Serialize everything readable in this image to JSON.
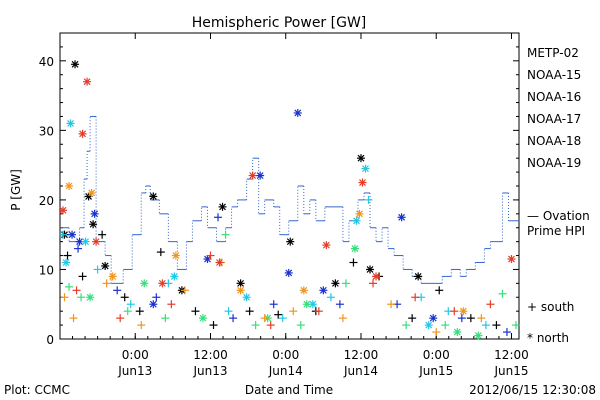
{
  "chart_data": {
    "type": "scatter",
    "title": "Hemispheric Power [GW]",
    "ylabel": "P [GW]",
    "xlabel": "Date and Time",
    "ylim": [
      0,
      44
    ],
    "yticks": [
      0,
      10,
      20,
      30,
      40
    ],
    "xlim": [
      -0.5,
      2.55
    ],
    "x_units": "days since 2012-06-13 00:00 UT",
    "xticks": [
      {
        "x": 0.0,
        "line1": "0:00",
        "line2": "Jun13"
      },
      {
        "x": 0.5,
        "line1": "12:00",
        "line2": "Jun13"
      },
      {
        "x": 1.0,
        "line1": "0:00",
        "line2": "Jun14"
      },
      {
        "x": 1.5,
        "line1": "12:00",
        "line2": "Jun14"
      },
      {
        "x": 2.0,
        "line1": "0:00",
        "line2": "Jun15"
      },
      {
        "x": 2.5,
        "line1": "12:00",
        "line2": "Jun15"
      }
    ],
    "legend_placement": "right",
    "series": [
      {
        "name": "METP-02",
        "color": "#000000"
      },
      {
        "name": "NOAA-15",
        "color": "#1a33cc"
      },
      {
        "name": "NOAA-16",
        "color": "#22c8e6"
      },
      {
        "name": "NOAA-17",
        "color": "#33e07a"
      },
      {
        "name": "NOAA-18",
        "color": "#f0961e"
      },
      {
        "name": "NOAA-19",
        "color": "#e63c28"
      }
    ],
    "marker_legend": [
      {
        "symbol": "+",
        "label": "south"
      },
      {
        "symbol": "*",
        "label": "north"
      }
    ],
    "ovation": {
      "label_line1": "— Ovation",
      "label_line2": "Prime HPI",
      "color": "#3366cc",
      "steps": [
        [
          -0.5,
          16
        ],
        [
          -0.44,
          14
        ],
        [
          -0.37,
          16
        ],
        [
          -0.34,
          23
        ],
        [
          -0.32,
          27
        ],
        [
          -0.3,
          32
        ],
        [
          -0.26,
          14
        ],
        [
          -0.2,
          12
        ],
        [
          -0.16,
          8
        ],
        [
          -0.08,
          10
        ],
        [
          -0.02,
          15
        ],
        [
          0.04,
          21
        ],
        [
          0.07,
          22
        ],
        [
          0.1,
          20
        ],
        [
          0.16,
          18
        ],
        [
          0.22,
          14
        ],
        [
          0.28,
          10
        ],
        [
          0.34,
          14
        ],
        [
          0.38,
          17
        ],
        [
          0.44,
          19
        ],
        [
          0.48,
          16
        ],
        [
          0.54,
          14
        ],
        [
          0.6,
          16
        ],
        [
          0.64,
          19
        ],
        [
          0.68,
          20
        ],
        [
          0.74,
          23
        ],
        [
          0.78,
          26
        ],
        [
          0.82,
          18
        ],
        [
          0.86,
          20
        ],
        [
          0.92,
          19
        ],
        [
          0.96,
          15
        ],
        [
          1.02,
          17
        ],
        [
          1.08,
          22
        ],
        [
          1.12,
          18
        ],
        [
          1.16,
          20
        ],
        [
          1.2,
          17
        ],
        [
          1.26,
          19
        ],
        [
          1.32,
          19
        ],
        [
          1.38,
          14
        ],
        [
          1.42,
          17
        ],
        [
          1.48,
          20
        ],
        [
          1.52,
          21
        ],
        [
          1.56,
          16
        ],
        [
          1.6,
          14
        ],
        [
          1.64,
          16
        ],
        [
          1.68,
          13
        ],
        [
          1.72,
          12
        ],
        [
          1.78,
          10
        ],
        [
          1.84,
          9
        ],
        [
          1.9,
          8
        ],
        [
          1.96,
          8
        ],
        [
          2.04,
          9
        ],
        [
          2.1,
          10
        ],
        [
          2.16,
          9
        ],
        [
          2.2,
          10
        ],
        [
          2.26,
          11
        ],
        [
          2.32,
          13
        ],
        [
          2.36,
          14
        ],
        [
          2.4,
          14
        ],
        [
          2.44,
          21
        ],
        [
          2.48,
          17
        ],
        [
          2.55,
          17
        ]
      ]
    },
    "points": [
      {
        "s": 0,
        "m": "*",
        "x": -0.47,
        "y": 15
      },
      {
        "s": 0,
        "m": "*",
        "x": -0.4,
        "y": 39.5
      },
      {
        "s": 0,
        "m": "*",
        "x": -0.31,
        "y": 20.5
      },
      {
        "s": 0,
        "m": "*",
        "x": -0.28,
        "y": 16.5
      },
      {
        "s": 0,
        "m": "*",
        "x": -0.2,
        "y": 10.5
      },
      {
        "s": 0,
        "m": "*",
        "x": 0.12,
        "y": 20.5
      },
      {
        "s": 0,
        "m": "*",
        "x": 0.58,
        "y": 19
      },
      {
        "s": 0,
        "m": "*",
        "x": 1.03,
        "y": 14
      },
      {
        "s": 0,
        "m": "*",
        "x": 1.5,
        "y": 26
      },
      {
        "s": 0,
        "m": "*",
        "x": 1.56,
        "y": 10
      },
      {
        "s": 0,
        "m": "*",
        "x": 0.31,
        "y": 7
      },
      {
        "s": 0,
        "m": "*",
        "x": 0.7,
        "y": 8
      },
      {
        "s": 0,
        "m": "*",
        "x": 1.33,
        "y": 8
      },
      {
        "s": 0,
        "m": "*",
        "x": 1.88,
        "y": 9
      },
      {
        "s": 0,
        "m": "+",
        "x": -0.45,
        "y": 12
      },
      {
        "s": 0,
        "m": "+",
        "x": -0.35,
        "y": 9
      },
      {
        "s": 0,
        "m": "+",
        "x": -0.22,
        "y": 15
      },
      {
        "s": 0,
        "m": "+",
        "x": -0.07,
        "y": 6
      },
      {
        "s": 0,
        "m": "+",
        "x": 0.03,
        "y": 4
      },
      {
        "s": 0,
        "m": "+",
        "x": 0.17,
        "y": 12.5
      },
      {
        "s": 0,
        "m": "+",
        "x": 0.4,
        "y": 4
      },
      {
        "s": 0,
        "m": "+",
        "x": 0.52,
        "y": 2
      },
      {
        "s": 0,
        "m": "+",
        "x": 0.76,
        "y": 4
      },
      {
        "s": 0,
        "m": "+",
        "x": 0.95,
        "y": 3.5
      },
      {
        "s": 0,
        "m": "+",
        "x": 1.2,
        "y": 4
      },
      {
        "s": 0,
        "m": "+",
        "x": 1.45,
        "y": 11
      },
      {
        "s": 0,
        "m": "+",
        "x": 1.62,
        "y": 9
      },
      {
        "s": 0,
        "m": "+",
        "x": 1.84,
        "y": 3
      },
      {
        "s": 0,
        "m": "+",
        "x": 2.02,
        "y": 7
      },
      {
        "s": 0,
        "m": "+",
        "x": 2.23,
        "y": 3
      },
      {
        "s": 0,
        "m": "+",
        "x": 2.4,
        "y": 2
      },
      {
        "s": 1,
        "m": "*",
        "x": -0.42,
        "y": 15
      },
      {
        "s": 1,
        "m": "*",
        "x": -0.37,
        "y": 14
      },
      {
        "s": 1,
        "m": "*",
        "x": -0.27,
        "y": 18
      },
      {
        "s": 1,
        "m": "*",
        "x": 0.48,
        "y": 11.5
      },
      {
        "s": 1,
        "m": "*",
        "x": 0.83,
        "y": 23.5
      },
      {
        "s": 1,
        "m": "*",
        "x": 1.08,
        "y": 32.5
      },
      {
        "s": 1,
        "m": "*",
        "x": 1.77,
        "y": 17.5
      },
      {
        "s": 1,
        "m": "*",
        "x": 1.02,
        "y": 9.5
      },
      {
        "s": 1,
        "m": "*",
        "x": 0.12,
        "y": 5
      },
      {
        "s": 1,
        "m": "*",
        "x": 1.25,
        "y": 7
      },
      {
        "s": 1,
        "m": "*",
        "x": 1.98,
        "y": 3
      },
      {
        "s": 1,
        "m": "+",
        "x": -0.38,
        "y": 13
      },
      {
        "s": 1,
        "m": "+",
        "x": -0.12,
        "y": 7
      },
      {
        "s": 1,
        "m": "+",
        "x": 0.14,
        "y": 6
      },
      {
        "s": 1,
        "m": "+",
        "x": 0.55,
        "y": 17.5
      },
      {
        "s": 1,
        "m": "+",
        "x": 0.65,
        "y": 3
      },
      {
        "s": 1,
        "m": "+",
        "x": 0.92,
        "y": 5
      },
      {
        "s": 1,
        "m": "+",
        "x": 1.36,
        "y": 5
      },
      {
        "s": 1,
        "m": "+",
        "x": 1.74,
        "y": 5
      },
      {
        "s": 1,
        "m": "+",
        "x": 2.17,
        "y": 3
      },
      {
        "s": 1,
        "m": "+",
        "x": 2.47,
        "y": 1
      },
      {
        "s": 2,
        "m": "*",
        "x": -0.46,
        "y": 11
      },
      {
        "s": 2,
        "m": "*",
        "x": -0.43,
        "y": 31
      },
      {
        "s": 2,
        "m": "*",
        "x": -0.33,
        "y": 14
      },
      {
        "s": 2,
        "m": "*",
        "x": 1.53,
        "y": 24.5
      },
      {
        "s": 2,
        "m": "*",
        "x": 1.47,
        "y": 17
      },
      {
        "s": 2,
        "m": "*",
        "x": 0.26,
        "y": 9
      },
      {
        "s": 2,
        "m": "*",
        "x": 0.74,
        "y": 6
      },
      {
        "s": 2,
        "m": "*",
        "x": 1.18,
        "y": 5
      },
      {
        "s": 2,
        "m": "*",
        "x": 1.95,
        "y": 2
      },
      {
        "s": 2,
        "m": "+",
        "x": -0.48,
        "y": 15
      },
      {
        "s": 2,
        "m": "+",
        "x": -0.25,
        "y": 10
      },
      {
        "s": 2,
        "m": "+",
        "x": -0.03,
        "y": 5
      },
      {
        "s": 2,
        "m": "+",
        "x": 0.22,
        "y": 8
      },
      {
        "s": 2,
        "m": "+",
        "x": 0.62,
        "y": 4
      },
      {
        "s": 2,
        "m": "+",
        "x": 0.98,
        "y": 3
      },
      {
        "s": 2,
        "m": "+",
        "x": 1.3,
        "y": 6
      },
      {
        "s": 2,
        "m": "+",
        "x": 1.55,
        "y": 20
      },
      {
        "s": 2,
        "m": "+",
        "x": 1.9,
        "y": 6
      },
      {
        "s": 2,
        "m": "+",
        "x": 2.08,
        "y": 4
      },
      {
        "s": 2,
        "m": "+",
        "x": 2.33,
        "y": 2
      },
      {
        "s": 3,
        "m": "*",
        "x": -0.3,
        "y": 6
      },
      {
        "s": 3,
        "m": "*",
        "x": 0.06,
        "y": 8
      },
      {
        "s": 3,
        "m": "*",
        "x": 0.45,
        "y": 3
      },
      {
        "s": 3,
        "m": "*",
        "x": 0.88,
        "y": 3
      },
      {
        "s": 3,
        "m": "*",
        "x": 1.14,
        "y": 5
      },
      {
        "s": 3,
        "m": "*",
        "x": 1.46,
        "y": 13
      },
      {
        "s": 3,
        "m": "*",
        "x": 2.14,
        "y": 1
      },
      {
        "s": 3,
        "m": "*",
        "x": 2.28,
        "y": 0.5
      },
      {
        "s": 3,
        "m": "+",
        "x": -0.44,
        "y": 7.5
      },
      {
        "s": 3,
        "m": "+",
        "x": -0.36,
        "y": 6
      },
      {
        "s": 3,
        "m": "+",
        "x": -0.05,
        "y": 4
      },
      {
        "s": 3,
        "m": "+",
        "x": 0.2,
        "y": 3
      },
      {
        "s": 3,
        "m": "+",
        "x": 0.6,
        "y": 15
      },
      {
        "s": 3,
        "m": "+",
        "x": 0.8,
        "y": 2
      },
      {
        "s": 3,
        "m": "+",
        "x": 1.1,
        "y": 2
      },
      {
        "s": 3,
        "m": "+",
        "x": 1.4,
        "y": 8
      },
      {
        "s": 3,
        "m": "+",
        "x": 1.8,
        "y": 2
      },
      {
        "s": 3,
        "m": "+",
        "x": 2.06,
        "y": 2
      },
      {
        "s": 3,
        "m": "+",
        "x": 2.44,
        "y": 6.5
      },
      {
        "s": 3,
        "m": "+",
        "x": 2.53,
        "y": 2
      },
      {
        "s": 4,
        "m": "*",
        "x": -0.44,
        "y": 22
      },
      {
        "s": 4,
        "m": "*",
        "x": -0.29,
        "y": 21
      },
      {
        "s": 4,
        "m": "*",
        "x": -0.15,
        "y": 9
      },
      {
        "s": 4,
        "m": "*",
        "x": 0.27,
        "y": 12
      },
      {
        "s": 4,
        "m": "*",
        "x": 0.7,
        "y": 7
      },
      {
        "s": 4,
        "m": "*",
        "x": 1.12,
        "y": 7
      },
      {
        "s": 4,
        "m": "*",
        "x": 1.49,
        "y": 18
      },
      {
        "s": 4,
        "m": "*",
        "x": 2.18,
        "y": 4
      },
      {
        "s": 4,
        "m": "+",
        "x": -0.47,
        "y": 6
      },
      {
        "s": 4,
        "m": "+",
        "x": -0.41,
        "y": 3
      },
      {
        "s": 4,
        "m": "+",
        "x": -0.19,
        "y": 8
      },
      {
        "s": 4,
        "m": "+",
        "x": 0.04,
        "y": 2
      },
      {
        "s": 4,
        "m": "+",
        "x": 0.33,
        "y": 7
      },
      {
        "s": 4,
        "m": "+",
        "x": 0.57,
        "y": 11
      },
      {
        "s": 4,
        "m": "+",
        "x": 0.86,
        "y": 3
      },
      {
        "s": 4,
        "m": "+",
        "x": 1.05,
        "y": 4
      },
      {
        "s": 4,
        "m": "+",
        "x": 1.38,
        "y": 3
      },
      {
        "s": 4,
        "m": "+",
        "x": 1.7,
        "y": 5
      },
      {
        "s": 4,
        "m": "+",
        "x": 2.0,
        "y": 1
      },
      {
        "s": 4,
        "m": "+",
        "x": 2.3,
        "y": 3
      },
      {
        "s": 5,
        "m": "*",
        "x": -0.48,
        "y": 18.5
      },
      {
        "s": 5,
        "m": "*",
        "x": -0.35,
        "y": 29.5
      },
      {
        "s": 5,
        "m": "*",
        "x": -0.32,
        "y": 37
      },
      {
        "s": 5,
        "m": "*",
        "x": -0.26,
        "y": 14
      },
      {
        "s": 5,
        "m": "*",
        "x": 0.78,
        "y": 23.5
      },
      {
        "s": 5,
        "m": "*",
        "x": 1.51,
        "y": 22.5
      },
      {
        "s": 5,
        "m": "*",
        "x": 1.27,
        "y": 13.5
      },
      {
        "s": 5,
        "m": "*",
        "x": 0.18,
        "y": 8
      },
      {
        "s": 5,
        "m": "*",
        "x": 0.56,
        "y": 11
      },
      {
        "s": 5,
        "m": "*",
        "x": 1.6,
        "y": 9
      },
      {
        "s": 5,
        "m": "*",
        "x": 2.5,
        "y": 11.5
      },
      {
        "s": 5,
        "m": "+",
        "x": -0.39,
        "y": 7
      },
      {
        "s": 5,
        "m": "+",
        "x": -0.1,
        "y": 3
      },
      {
        "s": 5,
        "m": "+",
        "x": 0.24,
        "y": 5
      },
      {
        "s": 5,
        "m": "+",
        "x": 0.5,
        "y": 12
      },
      {
        "s": 5,
        "m": "+",
        "x": 0.9,
        "y": 2
      },
      {
        "s": 5,
        "m": "+",
        "x": 1.22,
        "y": 4
      },
      {
        "s": 5,
        "m": "+",
        "x": 1.58,
        "y": 8
      },
      {
        "s": 5,
        "m": "+",
        "x": 1.86,
        "y": 6
      },
      {
        "s": 5,
        "m": "+",
        "x": 2.12,
        "y": 4
      },
      {
        "s": 5,
        "m": "+",
        "x": 2.36,
        "y": 5
      }
    ]
  },
  "footer": {
    "plot_credit": "Plot: CCMC",
    "timestamp": "2012/06/15 12:30:08"
  }
}
